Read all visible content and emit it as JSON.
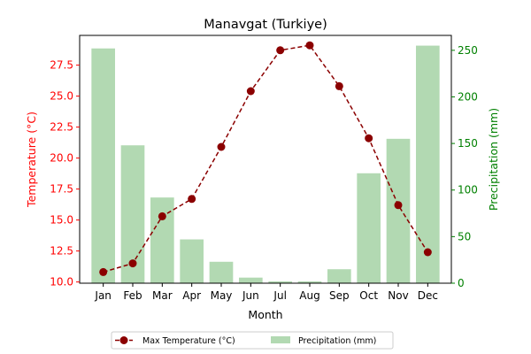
{
  "chart_data": {
    "type": "bar+line",
    "title": "Manavgat (Turkiye)",
    "xlabel": "Month",
    "ylabel_left": "Temperature (°C)",
    "ylabel_right": "Precipitation (mm)",
    "categories": [
      "Jan",
      "Feb",
      "Mar",
      "Apr",
      "May",
      "Jun",
      "Jul",
      "Aug",
      "Sep",
      "Oct",
      "Nov",
      "Dec"
    ],
    "ylim_left": [
      9.9,
      29.9
    ],
    "ylim_right": [
      0,
      266
    ],
    "yticks_left": [
      "10.0",
      "12.5",
      "15.0",
      "17.5",
      "20.0",
      "22.5",
      "25.0",
      "27.5"
    ],
    "yticks_right": [
      "0",
      "50",
      "100",
      "150",
      "200",
      "250"
    ],
    "series": [
      {
        "name": "Max Temperature (°C)",
        "kind": "line",
        "axis": "left",
        "color": "#8b0000",
        "values": [
          10.8,
          11.5,
          15.3,
          16.7,
          20.9,
          25.4,
          28.7,
          29.1,
          25.8,
          21.6,
          16.2,
          12.4
        ]
      },
      {
        "name": "Precipitation (mm)",
        "kind": "bar",
        "axis": "right",
        "color": "#b2d9b2",
        "values": [
          252,
          148,
          92,
          47,
          23,
          6,
          2,
          2,
          15,
          118,
          155,
          255
        ]
      }
    ],
    "left_axis_color": "#ff0000",
    "right_axis_color": "#008000",
    "grid": false,
    "legend_position": "bottom-center"
  }
}
